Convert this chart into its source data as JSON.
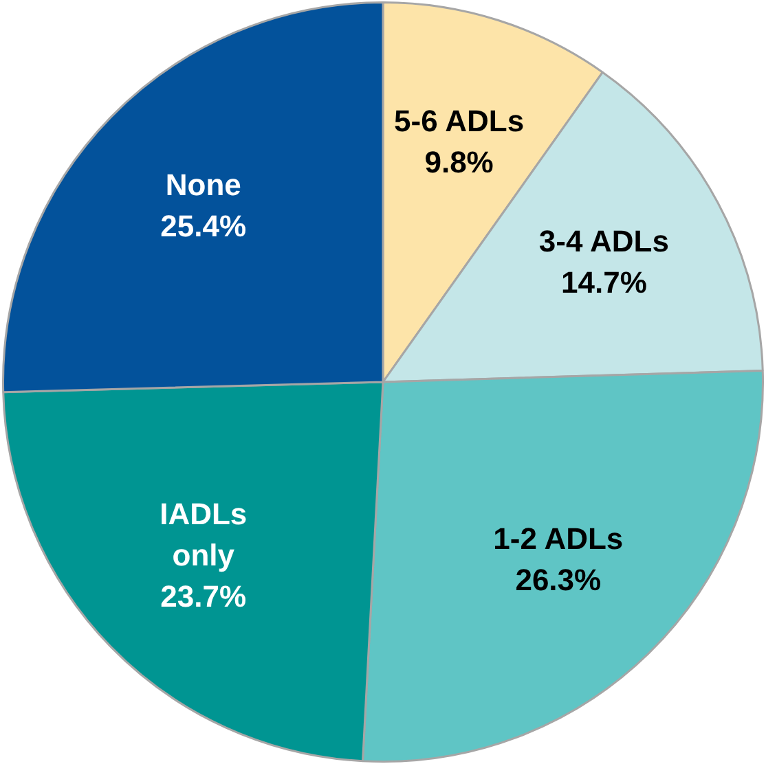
{
  "chart_data": {
    "type": "pie",
    "categories": [
      "5-6 ADLs",
      "3-4 ADLs",
      "1-2 ADLs",
      "IADLs only",
      "None"
    ],
    "values": [
      9.8,
      14.7,
      26.3,
      23.7,
      25.4
    ],
    "colors": [
      "#fde4a9",
      "#c4e6e8",
      "#5fc5c5",
      "#009592",
      "#03529b"
    ],
    "value_labels": [
      "9.8%",
      "14.7%",
      "26.3%",
      "23.7%",
      "25.4%"
    ],
    "legend": false
  }
}
